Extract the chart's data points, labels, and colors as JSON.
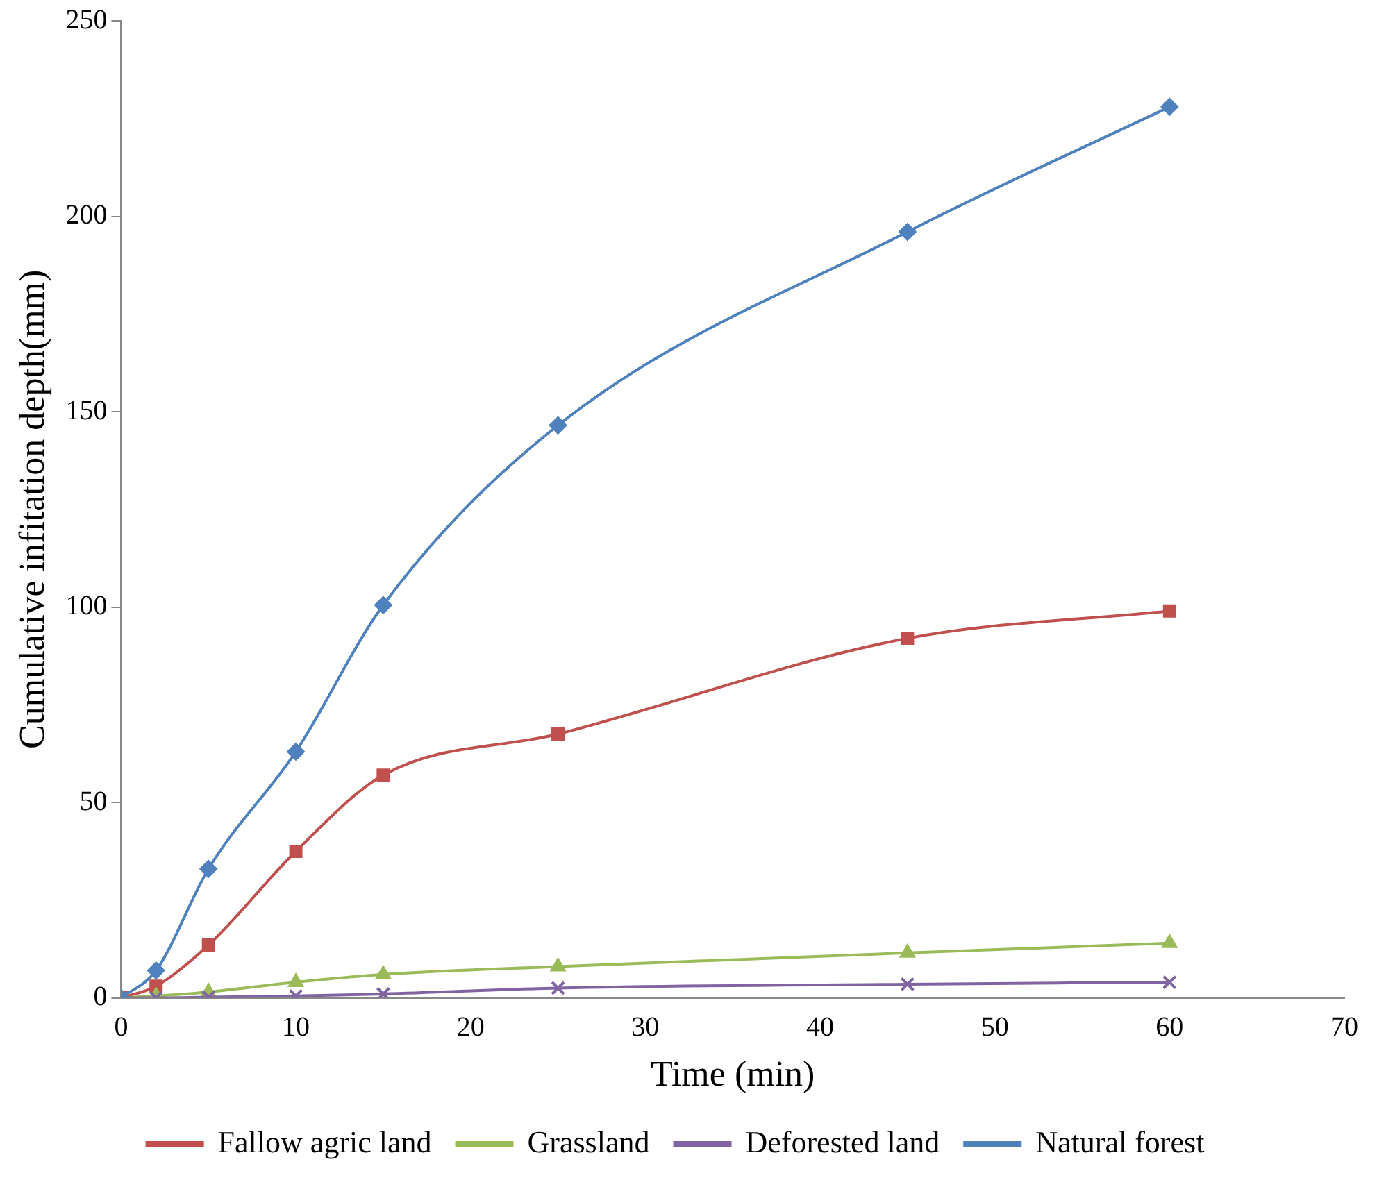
{
  "chart_data": {
    "type": "line",
    "xlabel": "Time (min)",
    "ylabel": "Cumulative infitation depth(mm)",
    "x": [
      0,
      2,
      5,
      10,
      15,
      25,
      45,
      60
    ],
    "series": [
      {
        "name": "Fallow agric land",
        "color": "#c0504d",
        "marker": "square",
        "values": [
          0,
          3,
          13.5,
          37.5,
          57,
          67.5,
          92,
          99
        ]
      },
      {
        "name": "Grassland",
        "color": "#9bbb59",
        "marker": "triangle",
        "values": [
          0,
          0.5,
          1.5,
          4,
          6,
          8,
          11.5,
          14
        ]
      },
      {
        "name": "Deforested land",
        "color": "#8064a2",
        "marker": "cross",
        "values": [
          0,
          0,
          0.2,
          0.5,
          1,
          2.5,
          3.5,
          4
        ]
      },
      {
        "name": "Natural forest",
        "color": "#4f81bd",
        "marker": "diamond",
        "values": [
          0,
          7,
          33,
          63,
          100.5,
          146.5,
          196,
          228
        ]
      }
    ],
    "xlim": [
      0,
      70
    ],
    "xticks": [
      0,
      10,
      20,
      30,
      40,
      50,
      60,
      70
    ],
    "ylim": [
      0,
      250
    ],
    "yticks": [
      0,
      50,
      100,
      150,
      200,
      250
    ],
    "grid": false,
    "legend": "bottom"
  }
}
